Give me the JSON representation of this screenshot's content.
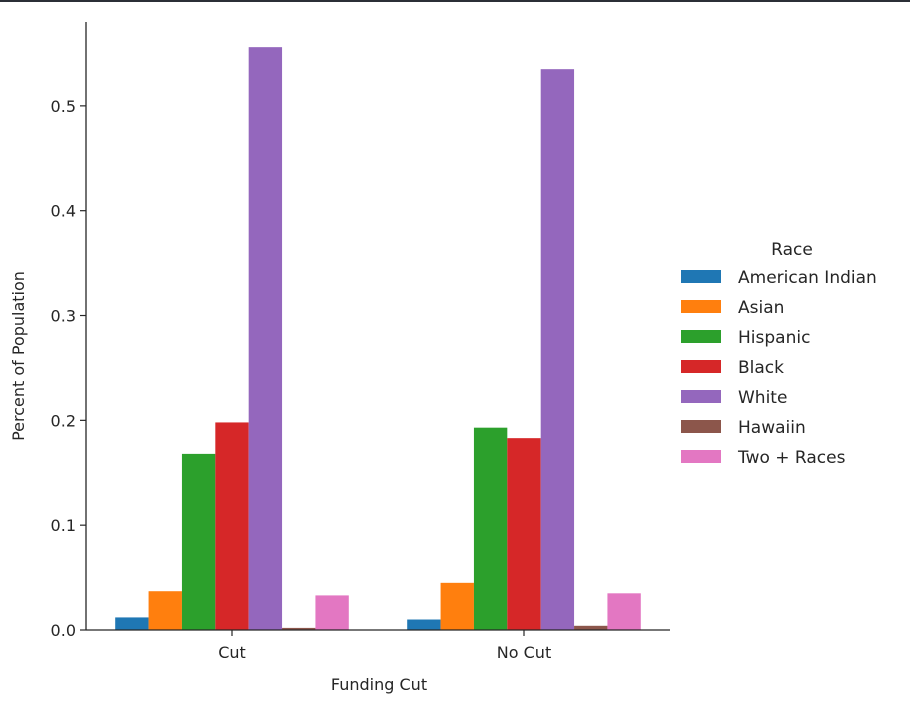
{
  "chart_data": {
    "type": "bar",
    "categories": [
      "Cut",
      "No Cut"
    ],
    "xlabel": "Funding Cut",
    "ylabel": "Percent of Population",
    "ylim": [
      0,
      0.58
    ],
    "yticks": [
      "0.0",
      "0.1",
      "0.2",
      "0.3",
      "0.4",
      "0.5"
    ],
    "ytick_values": [
      0,
      0.1,
      0.2,
      0.3,
      0.4,
      0.5
    ],
    "grid": false,
    "legend": {
      "title": "Race",
      "placement": "right"
    },
    "series": [
      {
        "name": "American Indian",
        "color": "#1f77b4",
        "values": [
          0.012,
          0.01
        ]
      },
      {
        "name": "Asian",
        "color": "#ff7f0e",
        "values": [
          0.037,
          0.045
        ]
      },
      {
        "name": "Hispanic",
        "color": "#2ca02c",
        "values": [
          0.168,
          0.193
        ]
      },
      {
        "name": "Black",
        "color": "#d62728",
        "values": [
          0.198,
          0.183
        ]
      },
      {
        "name": "White",
        "color": "#9467bd",
        "values": [
          0.556,
          0.535
        ]
      },
      {
        "name": "Hawaiin",
        "color": "#8c564b",
        "values": [
          0.002,
          0.004
        ]
      },
      {
        "name": "Two + Races",
        "color": "#e377c2",
        "values": [
          0.033,
          0.035
        ]
      }
    ]
  }
}
